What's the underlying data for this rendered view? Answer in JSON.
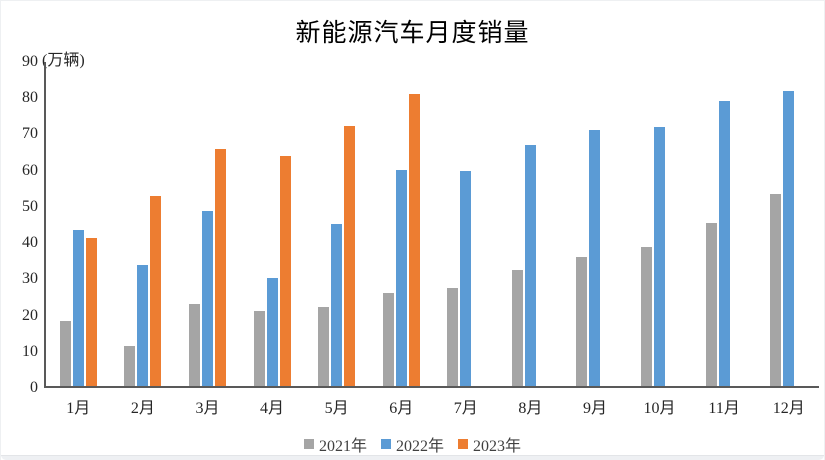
{
  "chart_data": {
    "type": "bar",
    "title": "新能源汽车月度销量",
    "unit_label": "(万辆)",
    "categories": [
      "1月",
      "2月",
      "3月",
      "4月",
      "5月",
      "6月",
      "7月",
      "8月",
      "9月",
      "10月",
      "11月",
      "12月"
    ],
    "series": [
      {
        "name": "2021年",
        "color": "#A5A5A5",
        "values": [
          17.9,
          11,
          22.6,
          20.6,
          21.7,
          25.6,
          27.1,
          32.1,
          35.7,
          38.3,
          45,
          53.1
        ]
      },
      {
        "name": "2022年",
        "color": "#5B9BD5",
        "values": [
          43.1,
          33.4,
          48.4,
          29.9,
          44.7,
          59.6,
          59.3,
          66.6,
          70.8,
          71.4,
          78.6,
          81.4
        ]
      },
      {
        "name": "2023年",
        "color": "#ED7D31",
        "values": [
          40.8,
          52.5,
          65.3,
          63.6,
          71.7,
          80.6,
          null,
          null,
          null,
          null,
          null,
          null
        ]
      }
    ],
    "y_axis": {
      "min": 0,
      "max": 90,
      "step": 10,
      "tick_labels": [
        "0",
        "10",
        "20",
        "30",
        "40",
        "50",
        "60",
        "70",
        "80",
        "90"
      ]
    },
    "legend": {
      "position": "bottom",
      "labels": [
        "2021年",
        "2022年",
        "2023年"
      ]
    },
    "grid": false,
    "axis_color": "#595959",
    "text_color": "#262626"
  }
}
